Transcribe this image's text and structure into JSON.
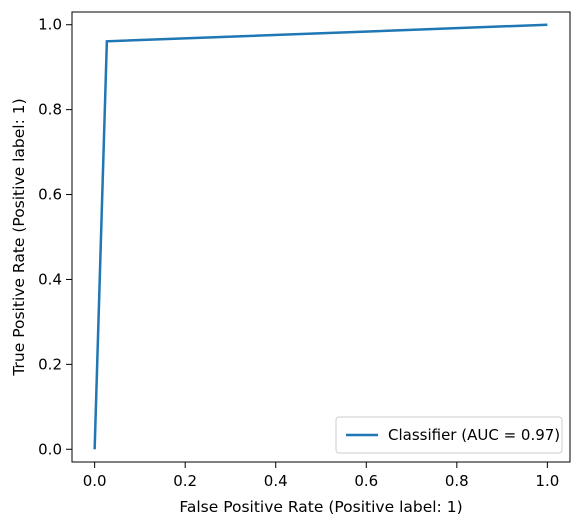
{
  "chart_data": {
    "type": "line",
    "title": "",
    "xlabel": "False Positive Rate (Positive label: 1)",
    "ylabel": "True Positive Rate (Positive label: 1)",
    "xlim": [
      -0.05,
      1.05
    ],
    "ylim": [
      -0.03,
      1.03
    ],
    "xticks": [
      0.0,
      0.2,
      0.4,
      0.6,
      0.8,
      1.0
    ],
    "yticks": [
      0.0,
      0.2,
      0.4,
      0.6,
      0.8,
      1.0
    ],
    "xtick_labels": [
      "0.0",
      "0.2",
      "0.4",
      "0.6",
      "0.8",
      "1.0"
    ],
    "ytick_labels": [
      "0.0",
      "0.2",
      "0.4",
      "0.6",
      "0.8",
      "1.0"
    ],
    "grid": false,
    "legend_position": "lower-right",
    "series": [
      {
        "name": "Classifier (AUC = 0.97)",
        "color": "#1f77b4",
        "x": [
          0.0,
          0.027,
          1.0
        ],
        "y": [
          0.0,
          0.961,
          1.0
        ]
      }
    ]
  }
}
